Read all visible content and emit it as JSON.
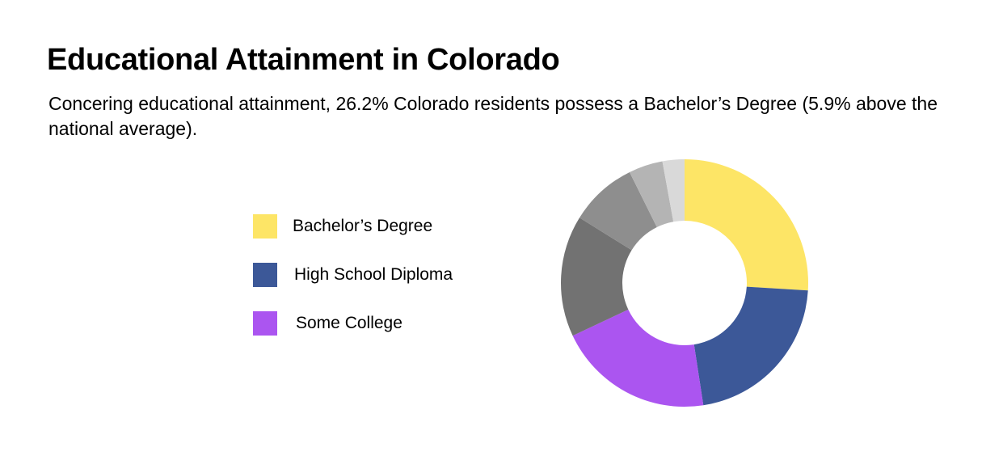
{
  "chart_data": {
    "type": "pie",
    "donut": true,
    "title": "Educational Attainment in Colorado",
    "subtitle": "Concering educational attainment, 26.2% Colorado residents possess a Bachelor’s Degree (5.9% above the national average).",
    "slices": [
      {
        "label": "Bachelor’s Degree",
        "value": 26.2,
        "color": "#FDE566"
      },
      {
        "label": "High School Diploma",
        "value": 21.8,
        "color": "#3C5898"
      },
      {
        "label": "Some College",
        "value": 20.6,
        "color": "#AB55F0"
      },
      {
        "label": "",
        "value": 16.0,
        "color": "#727272"
      },
      {
        "label": "",
        "value": 8.9,
        "color": "#8E8E8E"
      },
      {
        "label": "",
        "value": 4.5,
        "color": "#B4B4B4"
      },
      {
        "label": "",
        "value": 2.9,
        "color": "#D9D9D9"
      }
    ],
    "legend_position": "left"
  }
}
